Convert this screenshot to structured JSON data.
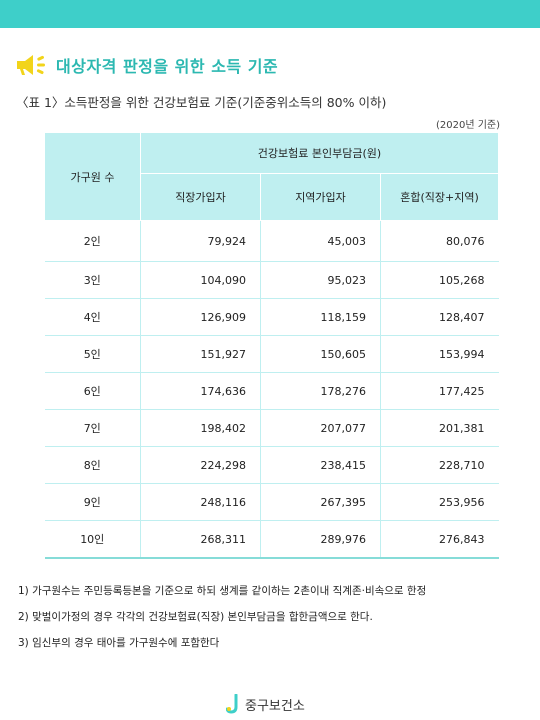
{
  "heading": {
    "title": "대상자격 판정을 위한 소득 기준",
    "icon": "megaphone-icon",
    "accent": "#2cb8b1"
  },
  "caption": "〈표 1〉소득판정을 위한 건강보험료 기준(기준중위소득의 80% 이하)",
  "year_note": "(2020년 기준)",
  "table": {
    "col_household": "가구원 수",
    "group_header": "건강보험료 본인부담금(원)",
    "sub_headers": [
      "직장가입자",
      "지역가입자",
      "혼합(직장+지역)"
    ],
    "rows": [
      {
        "label": "2인",
        "values": [
          "79,924",
          "45,003",
          "80,076"
        ]
      },
      {
        "label": "3인",
        "values": [
          "104,090",
          "95,023",
          "105,268"
        ]
      },
      {
        "label": "4인",
        "values": [
          "126,909",
          "118,159",
          "128,407"
        ]
      },
      {
        "label": "5인",
        "values": [
          "151,927",
          "150,605",
          "153,994"
        ]
      },
      {
        "label": "6인",
        "values": [
          "174,636",
          "178,276",
          "177,425"
        ]
      },
      {
        "label": "7인",
        "values": [
          "198,402",
          "207,077",
          "201,381"
        ]
      },
      {
        "label": "8인",
        "values": [
          "224,298",
          "238,415",
          "228,710"
        ]
      },
      {
        "label": "9인",
        "values": [
          "248,116",
          "267,395",
          "253,956"
        ]
      },
      {
        "label": "10인",
        "values": [
          "268,311",
          "289,976",
          "276,843"
        ]
      }
    ]
  },
  "notes": [
    "1)  가구원수는 주민등록등본을 기준으로 하되 생계를 같이하는 2촌이내 직계존·비속으로 한정",
    "2)  맞벌이가정의 경우 각각의 건강보험료(직장) 본인부담금을 합한금액으로 한다.",
    "3)   임신부의 경우 태아를 가구원수에 포함한다"
  ],
  "footer": {
    "name": "중구보건소",
    "logo": "health-center-logo"
  },
  "colors": {
    "topbar": "#3ecfc9",
    "header_bg": "#bfeff0",
    "icon_yellow": "#f2d41a"
  }
}
